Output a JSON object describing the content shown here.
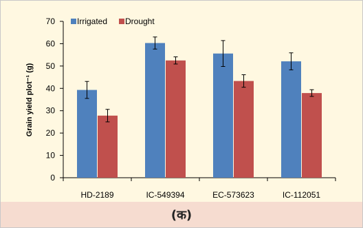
{
  "chart_data": {
    "type": "bar",
    "categories": [
      "HD-2189",
      "IC-549394",
      "EC-573623",
      "IC-112051"
    ],
    "series": [
      {
        "name": "Irrigated",
        "color": "#4f81bd",
        "values": [
          39.3,
          60.3,
          55.6,
          52.1
        ],
        "errors": [
          3.8,
          2.7,
          5.8,
          3.8
        ]
      },
      {
        "name": "Drought",
        "color": "#c0504d",
        "values": [
          27.8,
          52.5,
          43.3,
          37.9
        ],
        "errors": [
          2.8,
          1.6,
          2.8,
          1.5
        ]
      }
    ],
    "ylabel": "Grain yield plot⁻¹ (g)",
    "ylim": [
      0,
      70
    ],
    "yticks": [
      0,
      10,
      20,
      30,
      40,
      50,
      60,
      70
    ],
    "grid": false,
    "legend": "top-left",
    "caption": "(क)"
  }
}
